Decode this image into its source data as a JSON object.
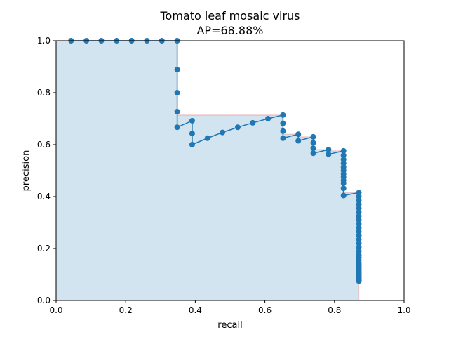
{
  "chart_data": {
    "type": "line",
    "title": "Tomato leaf mosaic virus",
    "subtitle": "AP=68.88%",
    "xlabel": "recall",
    "ylabel": "precision",
    "xlim": [
      0.0,
      1.0
    ],
    "ylim": [
      0.0,
      1.0
    ],
    "xticks": [
      "0.0",
      "0.2",
      "0.4",
      "0.6",
      "0.8",
      "1.0"
    ],
    "yticks": [
      "0.0",
      "0.2",
      "0.4",
      "0.6",
      "0.8",
      "1.0"
    ],
    "grid": false,
    "legend": "none",
    "colors": {
      "line": "#1f77b4",
      "fill": "#1f77b4",
      "fill_opacity": 0.2,
      "envelope": "#d62728"
    },
    "series": [
      {
        "values_x": [
          0.043,
          0.087,
          0.13,
          0.174,
          0.217,
          0.261,
          0.304,
          0.348,
          0.348,
          0.348,
          0.348,
          0.348,
          0.391,
          0.391,
          0.391,
          0.435,
          0.478,
          0.522,
          0.565,
          0.609,
          0.652,
          0.652,
          0.652,
          0.652,
          0.696,
          0.696,
          0.739,
          0.739,
          0.739,
          0.739,
          0.783,
          0.783,
          0.826,
          0.826,
          0.826,
          0.826,
          0.826,
          0.826,
          0.826,
          0.826,
          0.826,
          0.826,
          0.826,
          0.826,
          0.87,
          0.87,
          0.87,
          0.87,
          0.87,
          0.87,
          0.87,
          0.87,
          0.87,
          0.87,
          0.87,
          0.87,
          0.87,
          0.87,
          0.87,
          0.87,
          0.87,
          0.87,
          0.87,
          0.87,
          0.87,
          0.87,
          0.87,
          0.87,
          0.87,
          0.87,
          0.87,
          0.87,
          0.87,
          0.87,
          0.87,
          0.87,
          0.87,
          0.87,
          0.87,
          0.87
        ],
        "values_y": [
          1.0,
          1.0,
          1.0,
          1.0,
          1.0,
          1.0,
          1.0,
          1.0,
          0.889,
          0.8,
          0.727,
          0.667,
          0.692,
          0.643,
          0.6,
          0.625,
          0.647,
          0.667,
          0.684,
          0.7,
          0.714,
          0.682,
          0.652,
          0.625,
          0.64,
          0.615,
          0.63,
          0.607,
          0.586,
          0.567,
          0.581,
          0.563,
          0.576,
          0.559,
          0.543,
          0.528,
          0.514,
          0.5,
          0.487,
          0.475,
          0.463,
          0.452,
          0.432,
          0.404,
          0.415,
          0.4,
          0.385,
          0.37,
          0.355,
          0.34,
          0.325,
          0.31,
          0.295,
          0.28,
          0.265,
          0.25,
          0.235,
          0.22,
          0.205,
          0.19,
          0.175,
          0.165,
          0.155,
          0.145,
          0.138,
          0.131,
          0.124,
          0.118,
          0.112,
          0.107,
          0.102,
          0.098,
          0.094,
          0.09,
          0.087,
          0.084,
          0.081,
          0.079,
          0.077,
          0.075
        ]
      }
    ],
    "envelope": {
      "x": [
        0.0,
        0.348,
        0.348,
        0.652,
        0.652,
        0.696,
        0.696,
        0.739,
        0.739,
        0.783,
        0.783,
        0.826,
        0.826,
        0.87,
        0.87
      ],
      "y": [
        1.0,
        1.0,
        0.714,
        0.714,
        0.64,
        0.64,
        0.63,
        0.63,
        0.581,
        0.581,
        0.576,
        0.576,
        0.415,
        0.415,
        0.0
      ]
    }
  }
}
